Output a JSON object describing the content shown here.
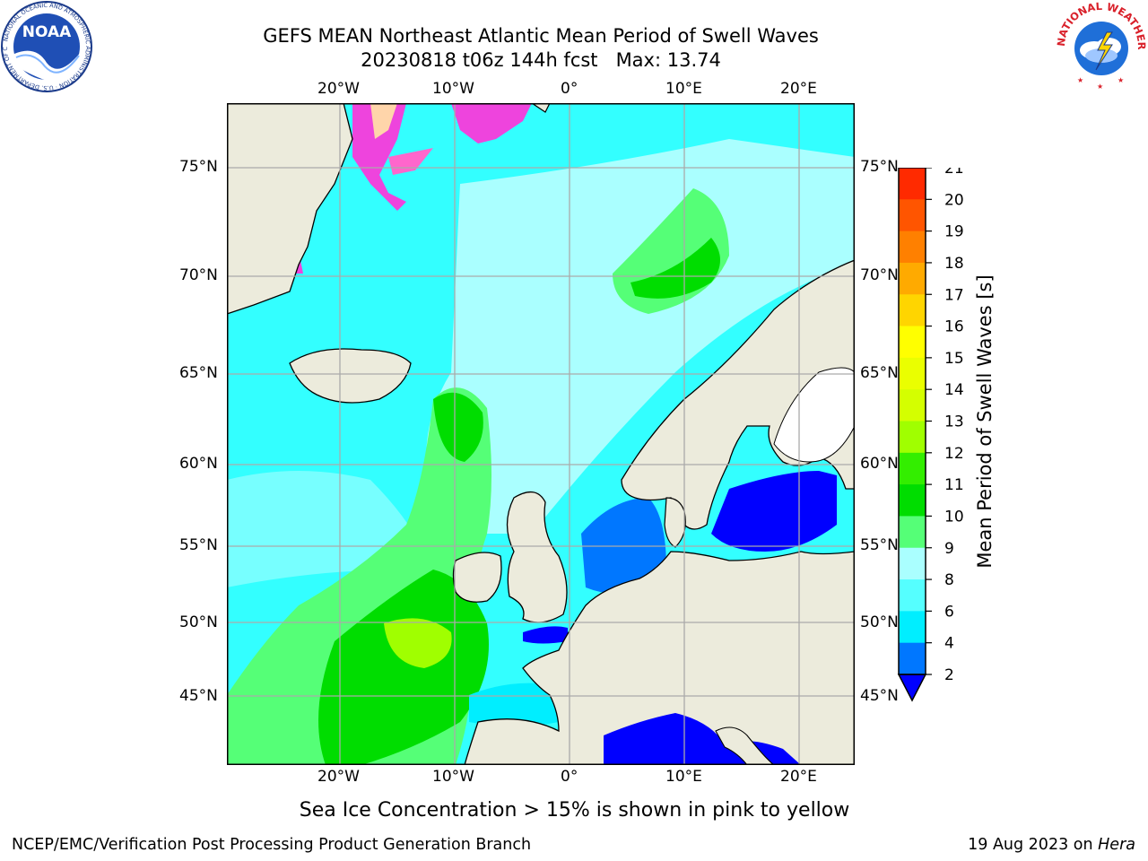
{
  "title": {
    "line1": "GEFS MEAN Northeast Atlantic Mean Period of Swell Waves",
    "line2": "20230818 t06z 144h fcst   Max: 13.74"
  },
  "logos": {
    "left": "NOAA",
    "right_ring_text": "NATIONAL WEATHER SERVICE"
  },
  "map": {
    "top_lon_labels": [
      "20°W",
      "10°W",
      "0°",
      "10°E",
      "20°E"
    ],
    "bottom_lon_labels": [
      "20°W",
      "10°W",
      "0°",
      "10°E",
      "20°E"
    ],
    "left_lat_labels": [
      "75°N",
      "70°N",
      "65°N",
      "60°N",
      "55°N",
      "50°N",
      "45°N"
    ],
    "right_lat_labels": [
      "75°N",
      "70°N",
      "65°N",
      "60°N",
      "55°N",
      "50°N",
      "45°N"
    ]
  },
  "colorbar": {
    "label": "Mean Period of Swell Waves [s]",
    "ticks": [
      "21",
      "20",
      "19",
      "18",
      "17",
      "16",
      "15",
      "14",
      "13",
      "12",
      "11",
      "10",
      "9",
      "8",
      "6",
      "4",
      "2"
    ],
    "colors": [
      "#ff0000",
      "#ff2a00",
      "#ff5500",
      "#ff8000",
      "#ffaa00",
      "#ffd500",
      "#ffff00",
      "#eaff00",
      "#d4ff00",
      "#a0ff00",
      "#33ee00",
      "#00dd00",
      "#55ff77",
      "#aaffff",
      "#55ffff",
      "#00eeff",
      "#0077ff",
      "#0000ff"
    ]
  },
  "footnote": "Sea Ice Concentration > 15% is shown in pink to yellow",
  "credit": "NCEP/EMC/Verification Post Processing Product Generation Branch",
  "date": {
    "prefix": "19 Aug 2023 on ",
    "host": "Hera"
  }
}
